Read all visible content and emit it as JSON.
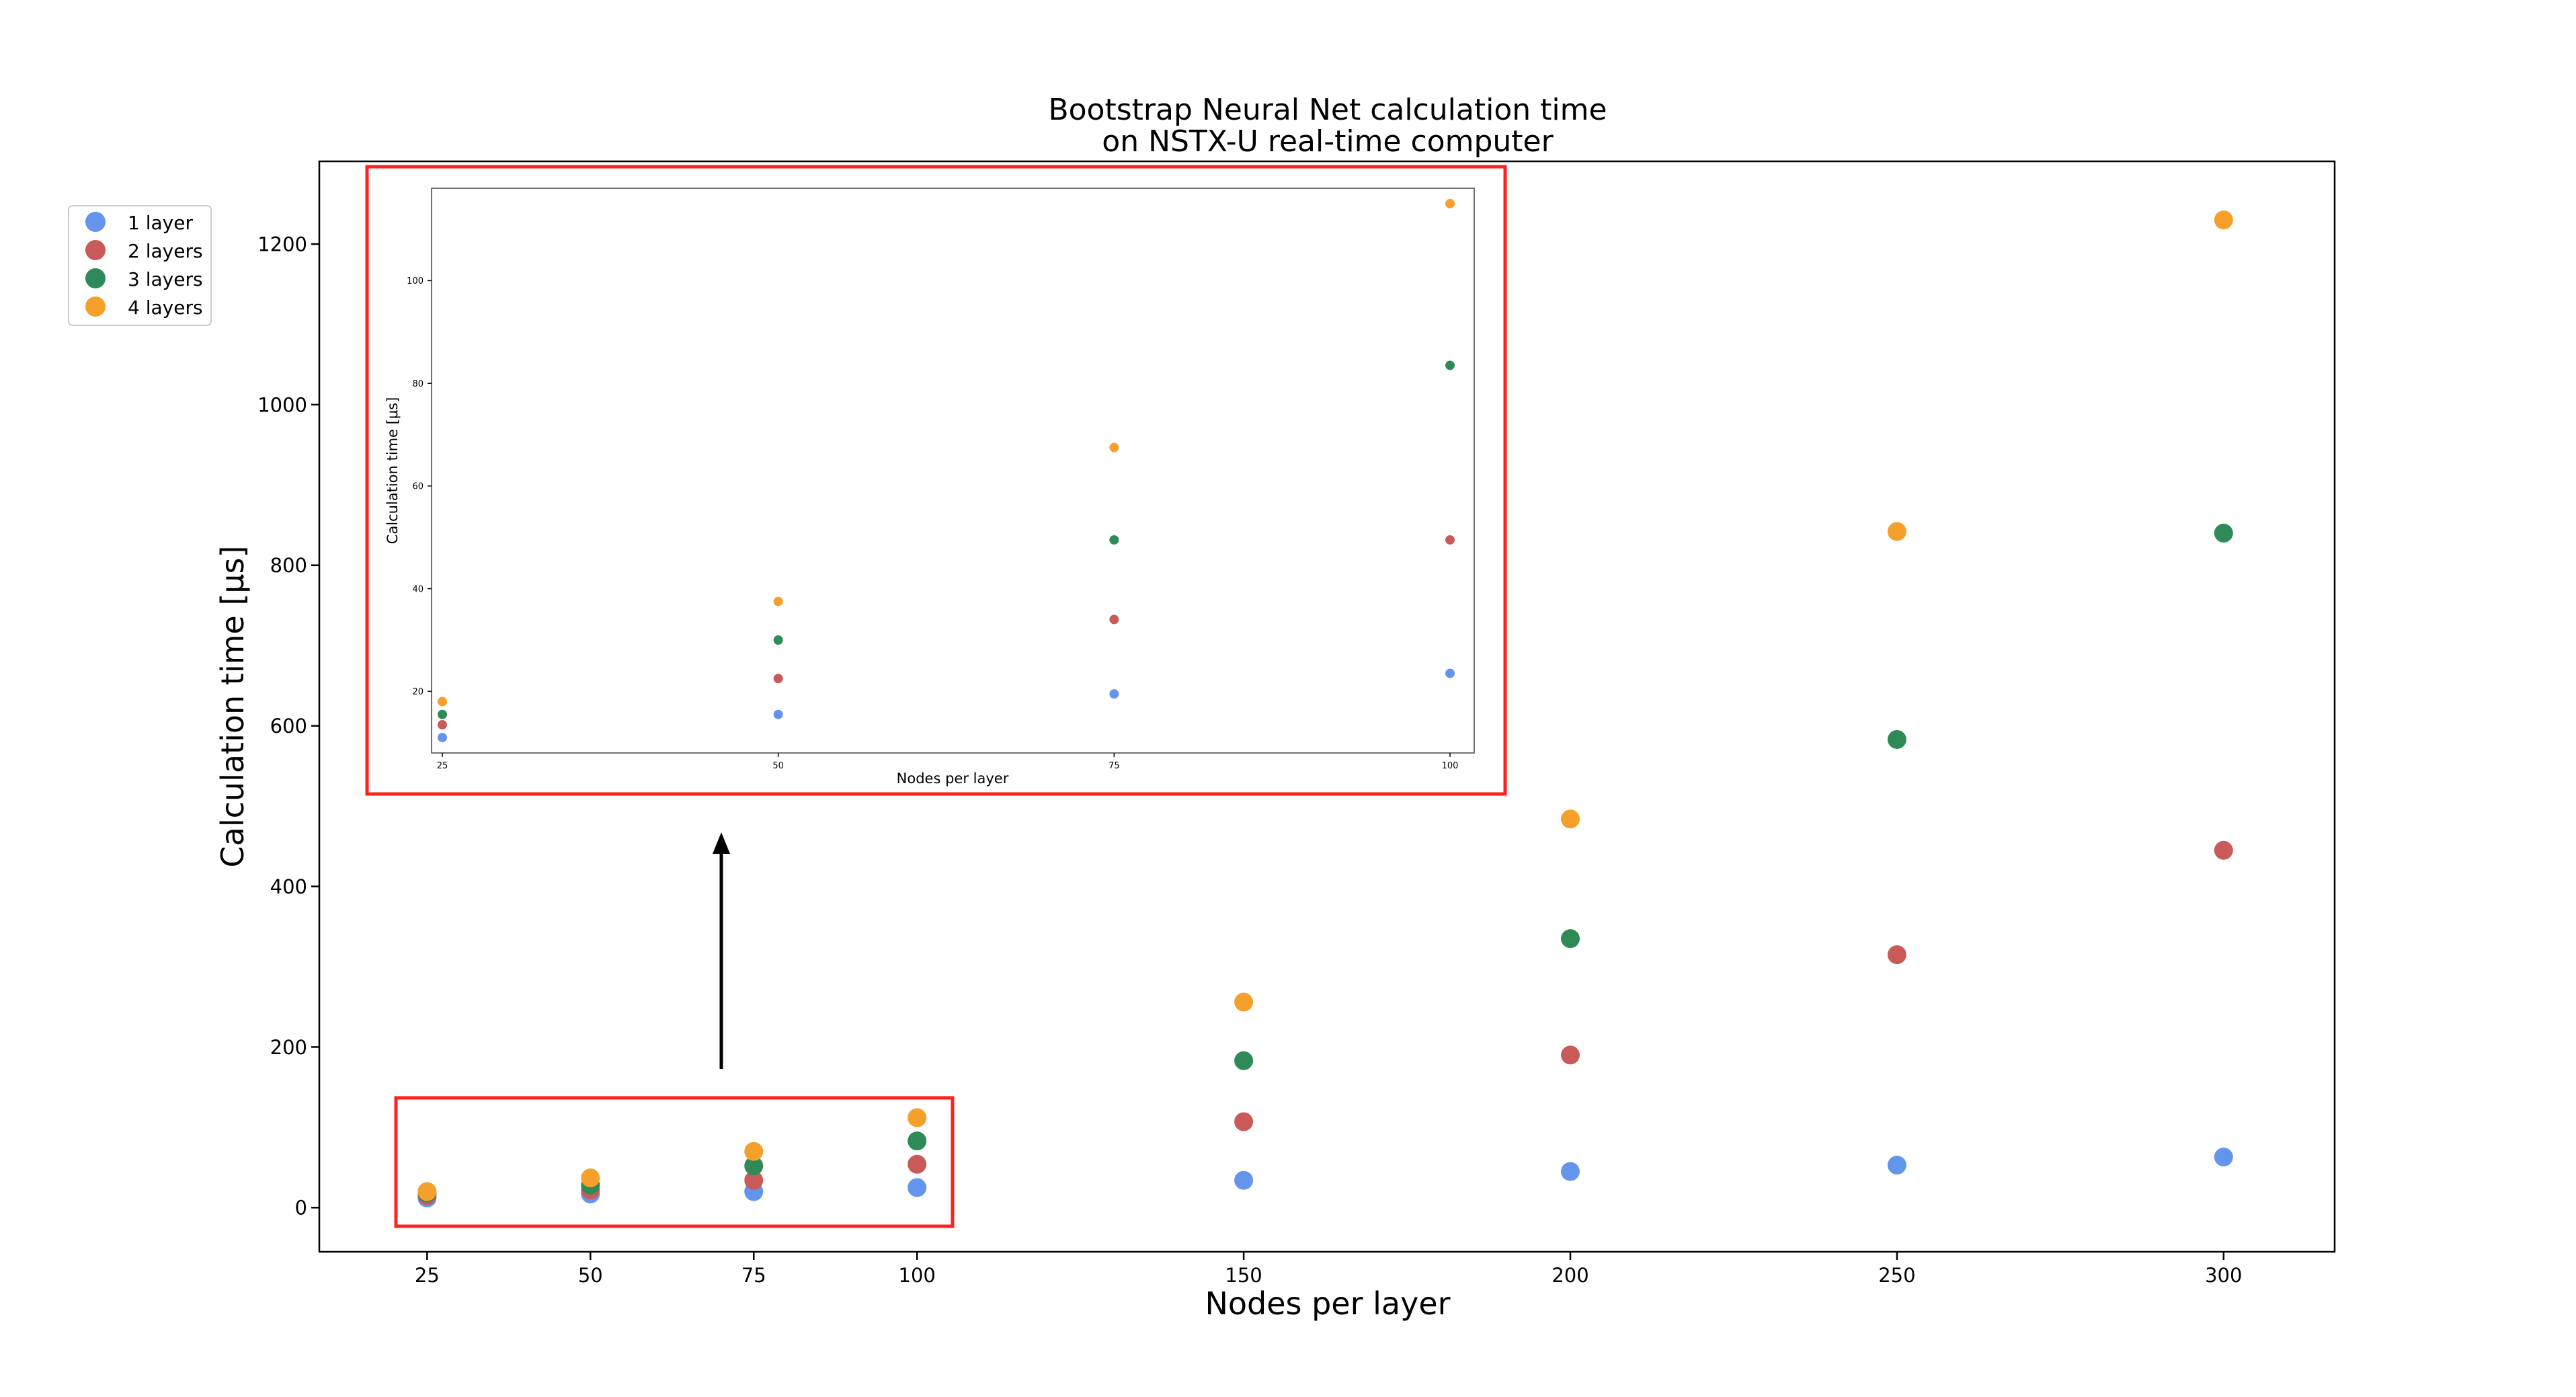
{
  "chart_data": [
    {
      "type": "scatter",
      "title_lines": [
        "Bootstrap Neural Net calculation time",
        "on NSTX-U real-time computer"
      ],
      "xlabel": "Nodes per layer",
      "ylabel": "Calculation time [μs]",
      "xticks": [
        25,
        50,
        75,
        100,
        150,
        200,
        250,
        300
      ],
      "yticks": [
        0,
        200,
        400,
        600,
        800,
        1000,
        1200
      ],
      "xlim": [
        8.5,
        317
      ],
      "ylim": [
        -55,
        1303
      ],
      "legend_placement": "outside-upper-left",
      "series": [
        {
          "name": "1 layer",
          "color": "#6495ED",
          "x": [
            25,
            50,
            75,
            100,
            150,
            200,
            250,
            300
          ],
          "y": [
            12,
            17,
            20,
            25,
            34,
            45,
            53,
            63
          ]
        },
        {
          "name": "2 layers",
          "color": "#C85A5A",
          "x": [
            25,
            50,
            75,
            100,
            150,
            200,
            250,
            300
          ],
          "y": [
            15,
            22,
            34,
            54,
            107,
            190,
            315,
            445
          ]
        },
        {
          "name": "3 layers",
          "color": "#2E8B57",
          "x": [
            25,
            50,
            75,
            100,
            150,
            200,
            250,
            300
          ],
          "y": [
            18,
            28,
            52,
            83,
            183,
            335,
            583,
            840
          ]
        },
        {
          "name": "4 layers",
          "color": "#F5A02A",
          "x": [
            25,
            50,
            75,
            100,
            150,
            200,
            250,
            300
          ],
          "y": [
            20,
            37,
            70,
            112,
            256,
            484,
            842,
            1230
          ]
        }
      ]
    },
    {
      "type": "scatter",
      "role": "inset",
      "xlabel": "Nodes per layer",
      "ylabel": "Calculation time [μs]",
      "xticks": [
        25,
        50,
        75,
        100
      ],
      "yticks": [
        20,
        40,
        60,
        80,
        100
      ],
      "xlim": [
        24.2,
        101.8
      ],
      "ylim": [
        8,
        118
      ],
      "series": [
        {
          "name": "1 layer",
          "color": "#6495ED",
          "x": [
            25,
            50,
            75,
            100
          ],
          "y": [
            11,
            15.5,
            19.5,
            23.5
          ]
        },
        {
          "name": "2 layers",
          "color": "#C85A5A",
          "x": [
            25,
            50,
            75,
            100
          ],
          "y": [
            13.5,
            22.5,
            34,
            49.5
          ]
        },
        {
          "name": "3 layers",
          "color": "#2E8B57",
          "x": [
            25,
            50,
            75,
            100
          ],
          "y": [
            15.5,
            30,
            49.5,
            83.5
          ]
        },
        {
          "name": "4 layers",
          "color": "#F5A02A",
          "x": [
            25,
            50,
            75,
            100
          ],
          "y": [
            18,
            37.5,
            67.5,
            115
          ]
        }
      ]
    }
  ],
  "annotation_colors": {
    "highlight_box": "#FF2020",
    "arrow": "#000000"
  }
}
